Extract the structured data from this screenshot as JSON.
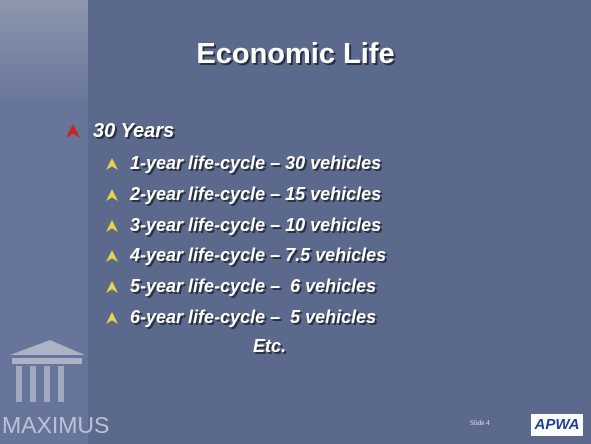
{
  "title": "Economic Life",
  "bullets": [
    {
      "text": "30 Years",
      "items": [
        "1-year life-cycle – 30 vehicles",
        "2-year life-cycle – 15 vehicles",
        "3-year life-cycle – 10 vehicles",
        "4-year life-cycle – 7.5 vehicles",
        "5-year life-cycle –  6 vehicles",
        "6-year life-cycle –  5 vehicles"
      ]
    }
  ],
  "closing": "Etc.",
  "footer": {
    "brand": "MAXIMUS",
    "slide_number": "Slide 4",
    "logo": "APWA"
  }
}
